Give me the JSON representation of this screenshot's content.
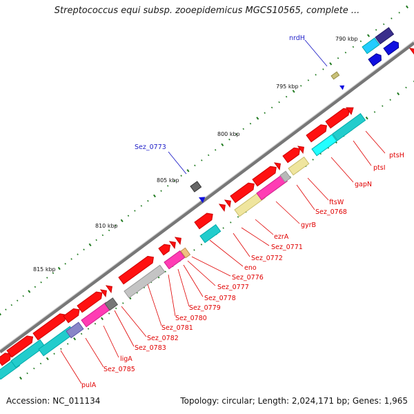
{
  "title": "Streptococcus equi subsp. zooepidemicus MGCS10565, complete ...",
  "footer": {
    "accession": "Accession: NC_011134",
    "summary": "Topology: circular; Length: 2,024,171 bp; Genes: 1,965"
  },
  "ticks": [
    {
      "label": "790 kbp"
    },
    {
      "label": "795 kbp"
    },
    {
      "label": "800 kbp"
    },
    {
      "label": "805 kbp"
    },
    {
      "label": "810 kbp"
    },
    {
      "label": "815 kbp"
    }
  ],
  "gene_labels": {
    "red": [
      "ptsH",
      "ptsI",
      "gapN",
      "ftsW",
      "Sez_0768",
      "gyrB",
      "ezrA",
      "Sez_0771",
      "Sez_0772",
      "eno",
      "Sez_0776",
      "Sez_0777",
      "Sez_0778",
      "Sez_0779",
      "Sez_0780",
      "Sez_0781",
      "Sez_0782",
      "Sez_0783",
      "ligA",
      "Sez_0785",
      "pulA"
    ],
    "blue": [
      "nrdH",
      "Sez_0773"
    ]
  },
  "colors": {
    "backbone": "#888888",
    "cds_forward": "#ff0000",
    "cds_reverse": "#ff0000",
    "cog_cyan": "#20c8c8",
    "cog_magenta": "#ff3cb4",
    "cog_khaki": "#e8e09a",
    "cog_gray": "#bcbcbc",
    "cog_navy": "#3a2f8c",
    "cog_blue": "#1010e0",
    "label_red": "#e00000",
    "label_blue": "#1f1fc8",
    "tick_green": "#1f7a1f"
  }
}
